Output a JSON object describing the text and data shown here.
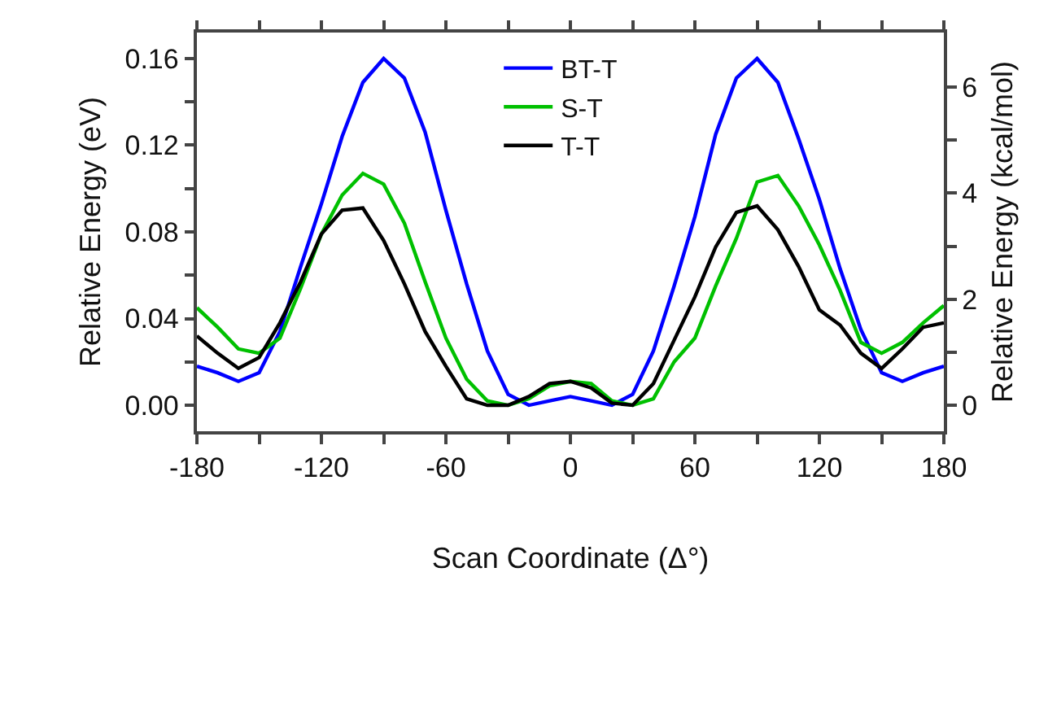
{
  "chart_data": {
    "type": "line",
    "xlabel": "Scan Coordinate (Δ°)",
    "ylabel": "Relative Energy (eV)",
    "y2label": "Relative Energy (kcal/mol)",
    "x": [
      -180,
      -170,
      -160,
      -150,
      -140,
      -130,
      -120,
      -110,
      -100,
      -90,
      -80,
      -70,
      -60,
      -50,
      -40,
      -30,
      -20,
      -10,
      0,
      10,
      20,
      30,
      40,
      50,
      60,
      70,
      80,
      90,
      100,
      110,
      120,
      130,
      140,
      150,
      160,
      170,
      180
    ],
    "series": [
      {
        "name": "BT-T",
        "color": "#0000ff",
        "values": [
          0.018,
          0.015,
          0.011,
          0.015,
          0.034,
          0.064,
          0.093,
          0.124,
          0.149,
          0.16,
          0.151,
          0.126,
          0.09,
          0.056,
          0.025,
          0.005,
          0.0,
          0.002,
          0.004,
          0.002,
          0.0,
          0.005,
          0.025,
          0.055,
          0.087,
          0.125,
          0.151,
          0.16,
          0.149,
          0.123,
          0.095,
          0.063,
          0.035,
          0.015,
          0.011,
          0.015,
          0.018
        ]
      },
      {
        "name": "S-T",
        "color": "#00c000",
        "values": [
          0.045,
          0.036,
          0.026,
          0.024,
          0.031,
          0.054,
          0.079,
          0.097,
          0.107,
          0.102,
          0.084,
          0.057,
          0.031,
          0.012,
          0.002,
          0.0,
          0.003,
          0.009,
          0.011,
          0.01,
          0.002,
          0.0,
          0.003,
          0.02,
          0.031,
          0.055,
          0.077,
          0.103,
          0.106,
          0.092,
          0.074,
          0.053,
          0.029,
          0.024,
          0.029,
          0.038,
          0.046
        ]
      },
      {
        "name": "T-T",
        "color": "#000000",
        "values": [
          0.032,
          0.024,
          0.017,
          0.022,
          0.038,
          0.057,
          0.079,
          0.09,
          0.091,
          0.076,
          0.056,
          0.034,
          0.018,
          0.003,
          0.0,
          0.0,
          0.004,
          0.01,
          0.011,
          0.008,
          0.001,
          0.0,
          0.01,
          0.03,
          0.05,
          0.073,
          0.089,
          0.092,
          0.081,
          0.064,
          0.044,
          0.037,
          0.024,
          0.017,
          0.026,
          0.036,
          0.038
        ]
      }
    ],
    "xlim": [
      -180,
      180
    ],
    "xticks": [
      -180,
      {
        "value": -150,
        "label": null
      },
      -120,
      {
        "value": -90,
        "label": null
      },
      -60,
      {
        "value": -30,
        "label": null
      },
      0,
      {
        "value": 30,
        "label": null
      },
      60,
      {
        "value": 90,
        "label": null
      },
      120,
      {
        "value": 150,
        "label": null
      },
      180
    ],
    "ylim": [
      -0.012,
      0.172
    ],
    "yticks": [
      {
        "value": 0,
        "label": "0.00"
      },
      {
        "value": 0.02,
        "label": null
      },
      0.04,
      {
        "value": 0.06,
        "label": null
      },
      0.08,
      {
        "value": 0.1,
        "label": null
      },
      0.12,
      {
        "value": 0.14,
        "label": null
      },
      0.16
    ],
    "y2lim": [
      -0.49,
      7.03
    ],
    "y2ticks": [
      0,
      {
        "value": 1,
        "label": null
      },
      2,
      {
        "value": 3,
        "label": null
      },
      4,
      {
        "value": 5,
        "label": null
      },
      6
    ],
    "legend": "top",
    "marker": "none",
    "line_style": "solid"
  }
}
